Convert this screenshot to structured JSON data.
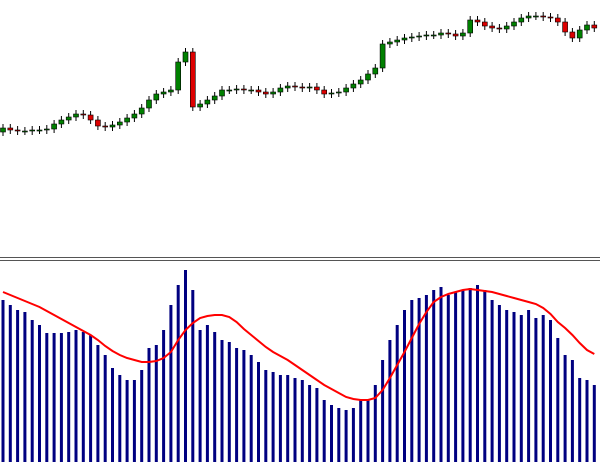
{
  "chart_data": [
    {
      "type": "candlestick",
      "open": [
        130,
        134,
        132,
        131,
        131,
        132,
        132,
        133,
        138,
        142,
        145,
        148,
        147,
        142,
        136,
        135,
        137,
        140,
        144,
        148,
        154,
        162,
        168,
        170,
        172,
        200,
        210,
        155,
        158,
        162,
        166,
        172,
        172,
        173,
        172,
        172,
        170,
        168,
        170,
        174,
        176,
        175,
        174,
        175,
        172,
        168,
        169,
        170,
        174,
        178,
        182,
        188,
        194,
        218,
        220,
        222,
        224,
        225,
        226,
        227,
        227,
        229,
        228,
        226,
        229,
        242,
        240,
        236,
        234,
        233,
        236,
        240,
        244,
        246,
        246,
        245,
        244,
        240,
        230,
        224,
        232,
        237
      ],
      "high": [
        138,
        138,
        136,
        135,
        136,
        136,
        137,
        142,
        146,
        149,
        152,
        152,
        151,
        146,
        140,
        141,
        144,
        148,
        152,
        158,
        166,
        172,
        174,
        176,
        204,
        214,
        214,
        162,
        166,
        170,
        176,
        176,
        177,
        177,
        176,
        176,
        174,
        174,
        178,
        180,
        180,
        179,
        179,
        179,
        176,
        173,
        174,
        178,
        182,
        186,
        192,
        198,
        222,
        224,
        226,
        228,
        229,
        230,
        231,
        231,
        233,
        233,
        232,
        233,
        246,
        246,
        244,
        240,
        238,
        240,
        244,
        248,
        250,
        250,
        250,
        249,
        248,
        244,
        234,
        236,
        241,
        241
      ],
      "low": [
        126,
        128,
        127,
        127,
        127,
        128,
        128,
        129,
        134,
        138,
        141,
        143,
        138,
        132,
        131,
        131,
        133,
        136,
        140,
        144,
        150,
        158,
        164,
        166,
        168,
        196,
        151,
        151,
        154,
        158,
        162,
        168,
        168,
        168,
        168,
        166,
        164,
        164,
        166,
        170,
        171,
        170,
        170,
        168,
        164,
        164,
        165,
        166,
        170,
        174,
        178,
        184,
        190,
        214,
        216,
        218,
        220,
        221,
        222,
        223,
        223,
        224,
        222,
        222,
        225,
        236,
        232,
        230,
        229,
        229,
        232,
        236,
        240,
        242,
        241,
        240,
        236,
        226,
        220,
        220,
        228,
        230
      ],
      "close": [
        134,
        132,
        131,
        131,
        132,
        132,
        133,
        138,
        142,
        145,
        148,
        147,
        142,
        136,
        135,
        137,
        140,
        144,
        148,
        154,
        162,
        168,
        170,
        172,
        200,
        210,
        155,
        158,
        162,
        166,
        172,
        172,
        173,
        172,
        172,
        170,
        168,
        170,
        174,
        176,
        175,
        174,
        175,
        172,
        168,
        169,
        170,
        174,
        178,
        182,
        188,
        194,
        218,
        220,
        222,
        224,
        225,
        226,
        227,
        227,
        229,
        228,
        226,
        229,
        242,
        240,
        236,
        234,
        233,
        236,
        240,
        244,
        246,
        246,
        245,
        244,
        240,
        230,
        224,
        232,
        237,
        234
      ],
      "up_color": "#008000",
      "down_color": "#dd0000",
      "ylim": [
        5,
        262
      ]
    },
    {
      "type": "histogram_signal",
      "values": [
        162,
        157,
        152,
        150,
        142,
        137,
        129,
        129,
        129,
        130,
        132,
        130,
        127,
        117,
        107,
        94,
        87,
        82,
        82,
        92,
        114,
        117,
        132,
        157,
        177,
        192,
        172,
        132,
        137,
        130,
        122,
        120,
        114,
        112,
        107,
        100,
        92,
        90,
        87,
        87,
        84,
        82,
        77,
        74,
        62,
        57,
        54,
        52,
        54,
        62,
        62,
        77,
        102,
        122,
        137,
        152,
        162,
        164,
        167,
        172,
        175,
        167,
        170,
        172,
        174,
        177,
        172,
        162,
        157,
        152,
        150,
        147,
        152,
        144,
        147,
        142,
        124,
        107,
        102,
        84,
        82,
        77
      ],
      "color": "#000080",
      "line_values": [
        170,
        167,
        164,
        161,
        158,
        155,
        151,
        147,
        143,
        139,
        135,
        131,
        127,
        122,
        116,
        111,
        107,
        104,
        102,
        100,
        100,
        101,
        104,
        110,
        122,
        132,
        139,
        144,
        146,
        147,
        147,
        145,
        140,
        133,
        127,
        121,
        115,
        110,
        106,
        102,
        97,
        92,
        87,
        82,
        77,
        73,
        69,
        65,
        63,
        62,
        62,
        64,
        72,
        84,
        97,
        110,
        124,
        138,
        150,
        160,
        165,
        168,
        170,
        172,
        173,
        172,
        171,
        170,
        168,
        166,
        164,
        162,
        160,
        158,
        154,
        148,
        140,
        134,
        127,
        119,
        112,
        108
      ],
      "line_color": "#ff0000",
      "ylim": [
        0,
        200
      ]
    }
  ]
}
